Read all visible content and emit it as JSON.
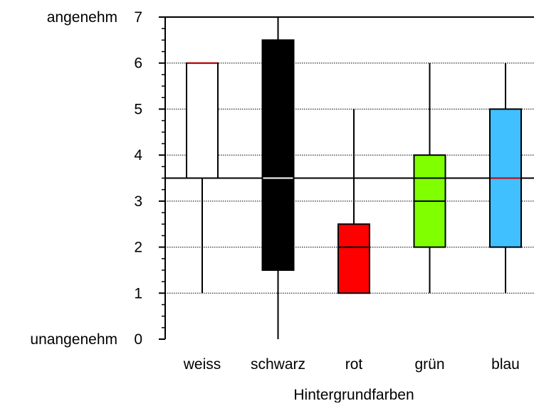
{
  "chart_data": {
    "type": "box",
    "xlabel": "Hintergrundfarben",
    "ylabel": "",
    "ylim": [
      0,
      7
    ],
    "yticks": [
      0,
      1,
      2,
      3,
      4,
      5,
      6,
      7
    ],
    "yend_labels": {
      "top": "angenehm",
      "bottom": "unangenehm"
    },
    "grid": true,
    "reference_line": 3.5,
    "categories": [
      "weiss",
      "schwarz",
      "rot",
      "grün",
      "blau"
    ],
    "boxes": [
      {
        "category": "weiss",
        "whisker_low": 1,
        "q1": 3.5,
        "median": 6,
        "q3": 6,
        "whisker_high": 6,
        "fill": "#ffffff",
        "median_color": "#cc0000"
      },
      {
        "category": "schwarz",
        "whisker_low": 0,
        "q1": 1.5,
        "median": 3.5,
        "q3": 6.5,
        "whisker_high": 7,
        "fill": "#000000",
        "median_color": "#ffffff"
      },
      {
        "category": "rot",
        "whisker_low": 1,
        "q1": 1,
        "median": 2,
        "q3": 2.5,
        "whisker_high": 5,
        "fill": "#ff0000",
        "median_color": "#000000"
      },
      {
        "category": "grün",
        "whisker_low": 1,
        "q1": 2,
        "median": 3,
        "q3": 4,
        "whisker_high": 6,
        "fill": "#80ff00",
        "median_color": "#000000"
      },
      {
        "category": "blau",
        "whisker_low": 1,
        "q1": 2,
        "median": 3.5,
        "q3": 5,
        "whisker_high": 6,
        "fill": "#40c0ff",
        "median_color": "#cc0000"
      }
    ]
  }
}
